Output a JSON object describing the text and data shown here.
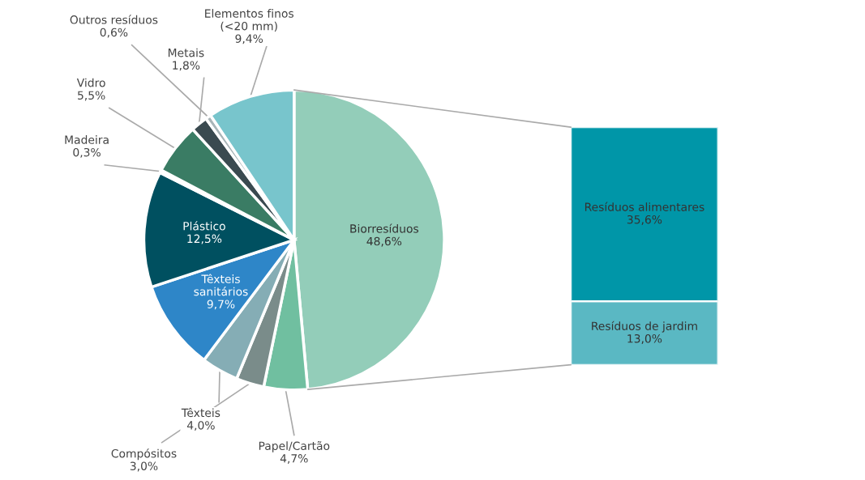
{
  "chart_data": [
    {
      "type": "pie",
      "categories": [
        "Biorresíduos",
        "Papel/Cartão",
        "Compósitos",
        "Têxteis",
        "Têxteis sanitários",
        "Plástico",
        "Madeira",
        "Vidro",
        "Metais",
        "Outros resíduos",
        "Elementos finos (<20 mm)"
      ],
      "values": [
        48.6,
        4.7,
        3.0,
        4.0,
        9.7,
        12.5,
        0.3,
        5.5,
        1.8,
        0.6,
        9.4
      ],
      "value_labels": [
        "48,6%",
        "4,7%",
        "3,0%",
        "4,0%",
        "9,7%",
        "12,5%",
        "0,3%",
        "5,5%",
        "1,8%",
        "0,6%",
        "9,4%"
      ],
      "colors": [
        "#93cdb9",
        "#70bfa0",
        "#7a8c8a",
        "#85adb5",
        "#2e86c8",
        "#005060",
        "#4f9a80",
        "#3a7c64",
        "#3a4a50",
        "#a9b5b8",
        "#78c5cc"
      ]
    },
    {
      "type": "bar",
      "stacked": true,
      "categories": [
        null
      ],
      "series": [
        {
          "name": "Resíduos de jardim",
          "color": "#5ab8c3",
          "values": [
            13.0
          ],
          "value_labels": [
            "13,0%"
          ]
        },
        {
          "name": "Resíduos alimentares",
          "color": "#0096a8",
          "values": [
            35.6
          ],
          "value_labels": [
            "35,6%"
          ]
        }
      ]
    }
  ]
}
